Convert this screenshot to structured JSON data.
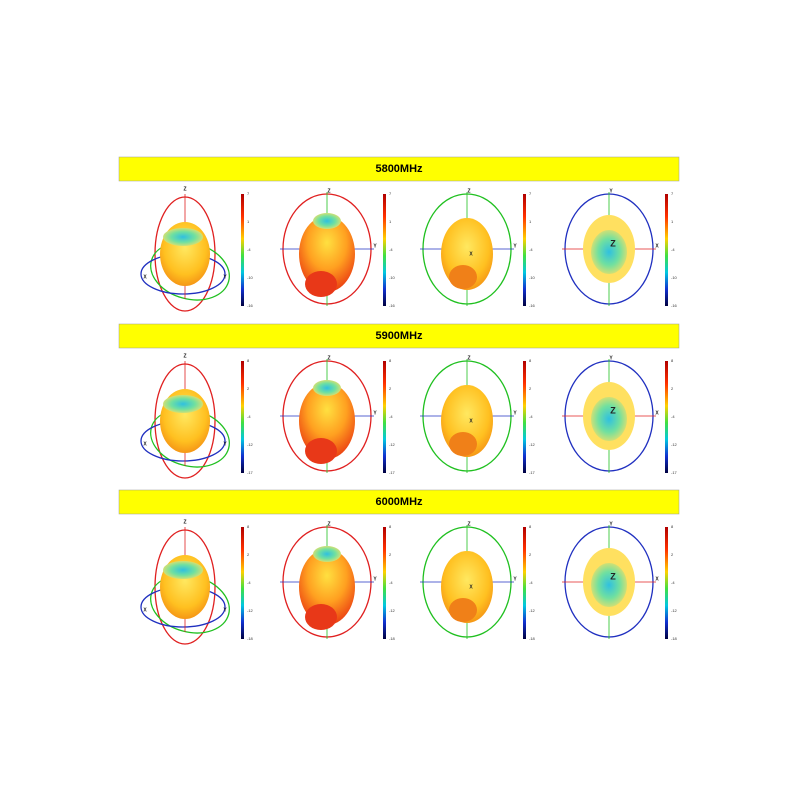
{
  "rows": [
    {
      "title": "5800MHz",
      "scale": [
        "7",
        "1",
        "-4",
        "-10",
        "-16"
      ]
    },
    {
      "title": "5900MHz",
      "scale": [
        "8",
        "2",
        "-4",
        "-12",
        "-17"
      ]
    },
    {
      "title": "6000MHz",
      "scale": [
        "8",
        "2",
        "-4",
        "-12",
        "-18"
      ]
    }
  ],
  "views": [
    {
      "axes": [
        "Z",
        "X",
        "Y"
      ]
    },
    {
      "axes": [
        "Z",
        "Y"
      ]
    },
    {
      "axes": [
        "Z",
        "Y",
        "X"
      ]
    },
    {
      "axes": [
        "Y",
        "X",
        "Z"
      ]
    }
  ]
}
